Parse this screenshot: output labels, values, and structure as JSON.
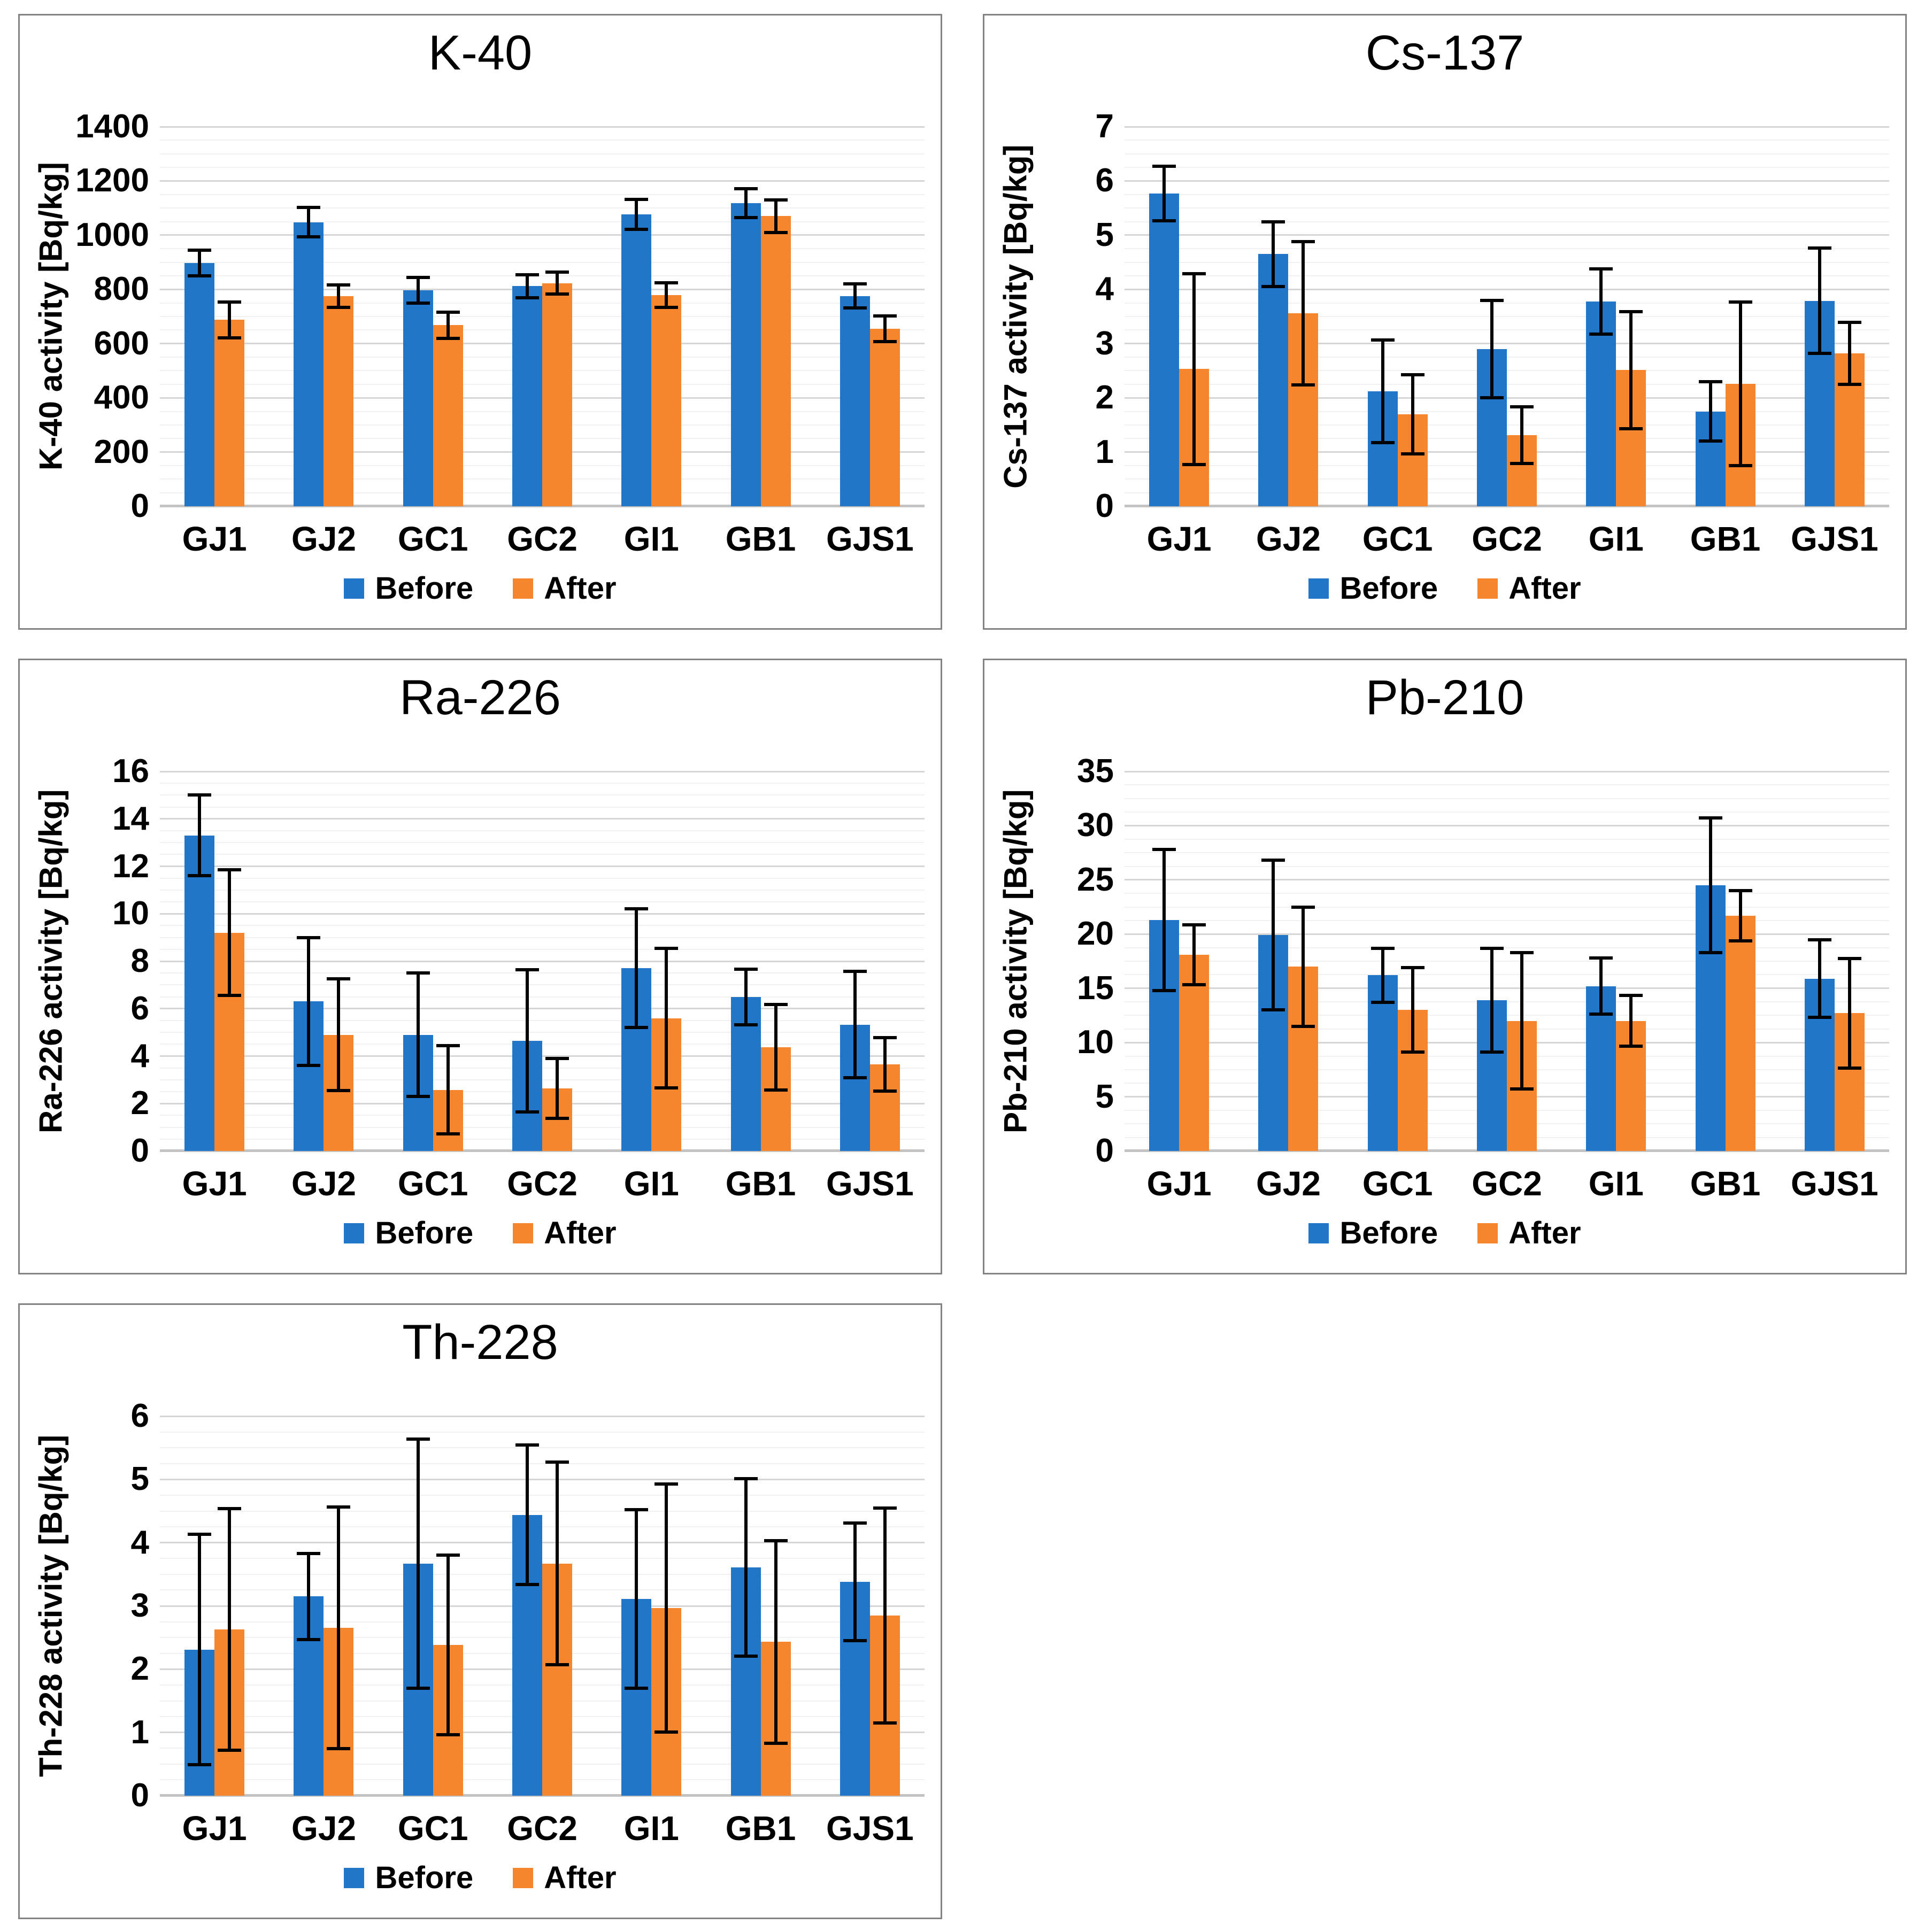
{
  "page": {
    "background": "#ffffff"
  },
  "colors": {
    "before": "#2176C8",
    "after": "#F6862E",
    "error_bar": "#000000",
    "grid_major": "#D6D6D6",
    "grid_minor": "#F0F0F0",
    "axis_baseline": "#C3C3C3",
    "panel_border": "#838383",
    "text": "#000000"
  },
  "legend": {
    "before_label": "Before",
    "after_label": "After",
    "position": "bottom"
  },
  "chart_data": [
    {
      "type": "bar",
      "title": "K-40",
      "ylabel": "K-40 activity [Bq/kg]",
      "xlabel": "",
      "ylim": [
        0,
        1400
      ],
      "ystep": 200,
      "grid": "on",
      "legend_position": "bottom",
      "categories": [
        "GJ1",
        "GJ2",
        "GC1",
        "GC2",
        "GI1",
        "GB1",
        "GJS1"
      ],
      "series": [
        {
          "name": "Before",
          "color_key": "before",
          "values": [
            897,
            1048,
            797,
            812,
            1077,
            1118,
            776
          ],
          "errors": [
            47,
            55,
            47,
            42,
            55,
            53,
            45
          ]
        },
        {
          "name": "After",
          "color_key": "after",
          "values": [
            688,
            775,
            668,
            823,
            779,
            1070,
            655
          ],
          "errors": [
            66,
            41,
            48,
            41,
            45,
            60,
            47
          ]
        }
      ]
    },
    {
      "type": "bar",
      "title": "Cs-137",
      "ylabel": "Cs-137 activity [Bq/kg]",
      "xlabel": "",
      "ylim": [
        0,
        7
      ],
      "ystep": 1,
      "grid": "on",
      "legend_position": "bottom",
      "categories": [
        "GJ1",
        "GJ2",
        "GC1",
        "GC2",
        "GI1",
        "GB1",
        "GJS1"
      ],
      "series": [
        {
          "name": "Before",
          "color_key": "before",
          "values": [
            5.77,
            4.65,
            2.12,
            2.9,
            3.78,
            1.75,
            3.79
          ],
          "errors": [
            0.5,
            0.6,
            0.95,
            0.9,
            0.6,
            0.55,
            0.97
          ]
        },
        {
          "name": "After",
          "color_key": "after",
          "values": [
            2.53,
            3.56,
            1.7,
            1.31,
            2.51,
            2.26,
            2.82
          ],
          "errors": [
            1.76,
            1.32,
            0.73,
            0.52,
            1.08,
            1.51,
            0.57
          ]
        }
      ]
    },
    {
      "type": "bar",
      "title": "Ra-226",
      "ylabel": "Ra-226 activity [Bq/kg]",
      "xlabel": "",
      "ylim": [
        0,
        16
      ],
      "ystep": 2,
      "grid": "on",
      "legend_position": "bottom",
      "categories": [
        "GJ1",
        "GJ2",
        "GC1",
        "GC2",
        "GI1",
        "GB1",
        "GJS1"
      ],
      "series": [
        {
          "name": "Before",
          "color_key": "before",
          "values": [
            13.3,
            6.3,
            4.9,
            4.65,
            7.7,
            6.5,
            5.33
          ],
          "errors": [
            1.7,
            2.7,
            2.6,
            3.0,
            2.5,
            1.17,
            2.25
          ]
        },
        {
          "name": "After",
          "color_key": "after",
          "values": [
            9.2,
            4.9,
            2.58,
            2.63,
            5.6,
            4.37,
            3.65
          ],
          "errors": [
            2.65,
            2.35,
            1.85,
            1.26,
            2.95,
            1.8,
            1.13
          ]
        }
      ]
    },
    {
      "type": "bar",
      "title": "Pb-210",
      "ylabel": "Pb-210 activity [Bq/kg]",
      "xlabel": "",
      "ylim": [
        0,
        35
      ],
      "ystep": 5,
      "grid": "on",
      "legend_position": "bottom",
      "categories": [
        "GJ1",
        "GJ2",
        "GC1",
        "GC2",
        "GI1",
        "GB1",
        "GJS1"
      ],
      "series": [
        {
          "name": "Before",
          "color_key": "before",
          "values": [
            21.3,
            19.9,
            16.2,
            13.9,
            15.2,
            24.5,
            15.9
          ],
          "errors": [
            6.5,
            6.9,
            2.5,
            4.8,
            2.6,
            6.2,
            3.55
          ]
        },
        {
          "name": "After",
          "color_key": "after",
          "values": [
            18.1,
            17.0,
            13.0,
            12.0,
            12.0,
            21.7,
            12.7
          ],
          "errors": [
            2.75,
            5.5,
            3.9,
            6.3,
            2.35,
            2.3,
            5.05
          ]
        }
      ]
    },
    {
      "type": "bar",
      "title": "Th-228",
      "ylabel": "Th-228 activity [Bq/kg]",
      "xlabel": "",
      "ylim": [
        0,
        6
      ],
      "ystep": 1,
      "grid": "on",
      "legend_position": "bottom",
      "categories": [
        "GJ1",
        "GJ2",
        "GC1",
        "GC2",
        "GI1",
        "GB1",
        "GJS1"
      ],
      "series": [
        {
          "name": "Before",
          "color_key": "before",
          "values": [
            2.31,
            3.15,
            3.67,
            4.44,
            3.11,
            3.61,
            3.38
          ],
          "errors": [
            1.82,
            0.68,
            1.97,
            1.1,
            1.41,
            1.4,
            0.93
          ]
        },
        {
          "name": "After",
          "color_key": "after",
          "values": [
            2.63,
            2.65,
            2.38,
            3.67,
            2.97,
            2.43,
            2.85
          ],
          "errors": [
            1.91,
            1.91,
            1.42,
            1.6,
            1.96,
            1.6,
            1.7
          ]
        }
      ]
    }
  ]
}
